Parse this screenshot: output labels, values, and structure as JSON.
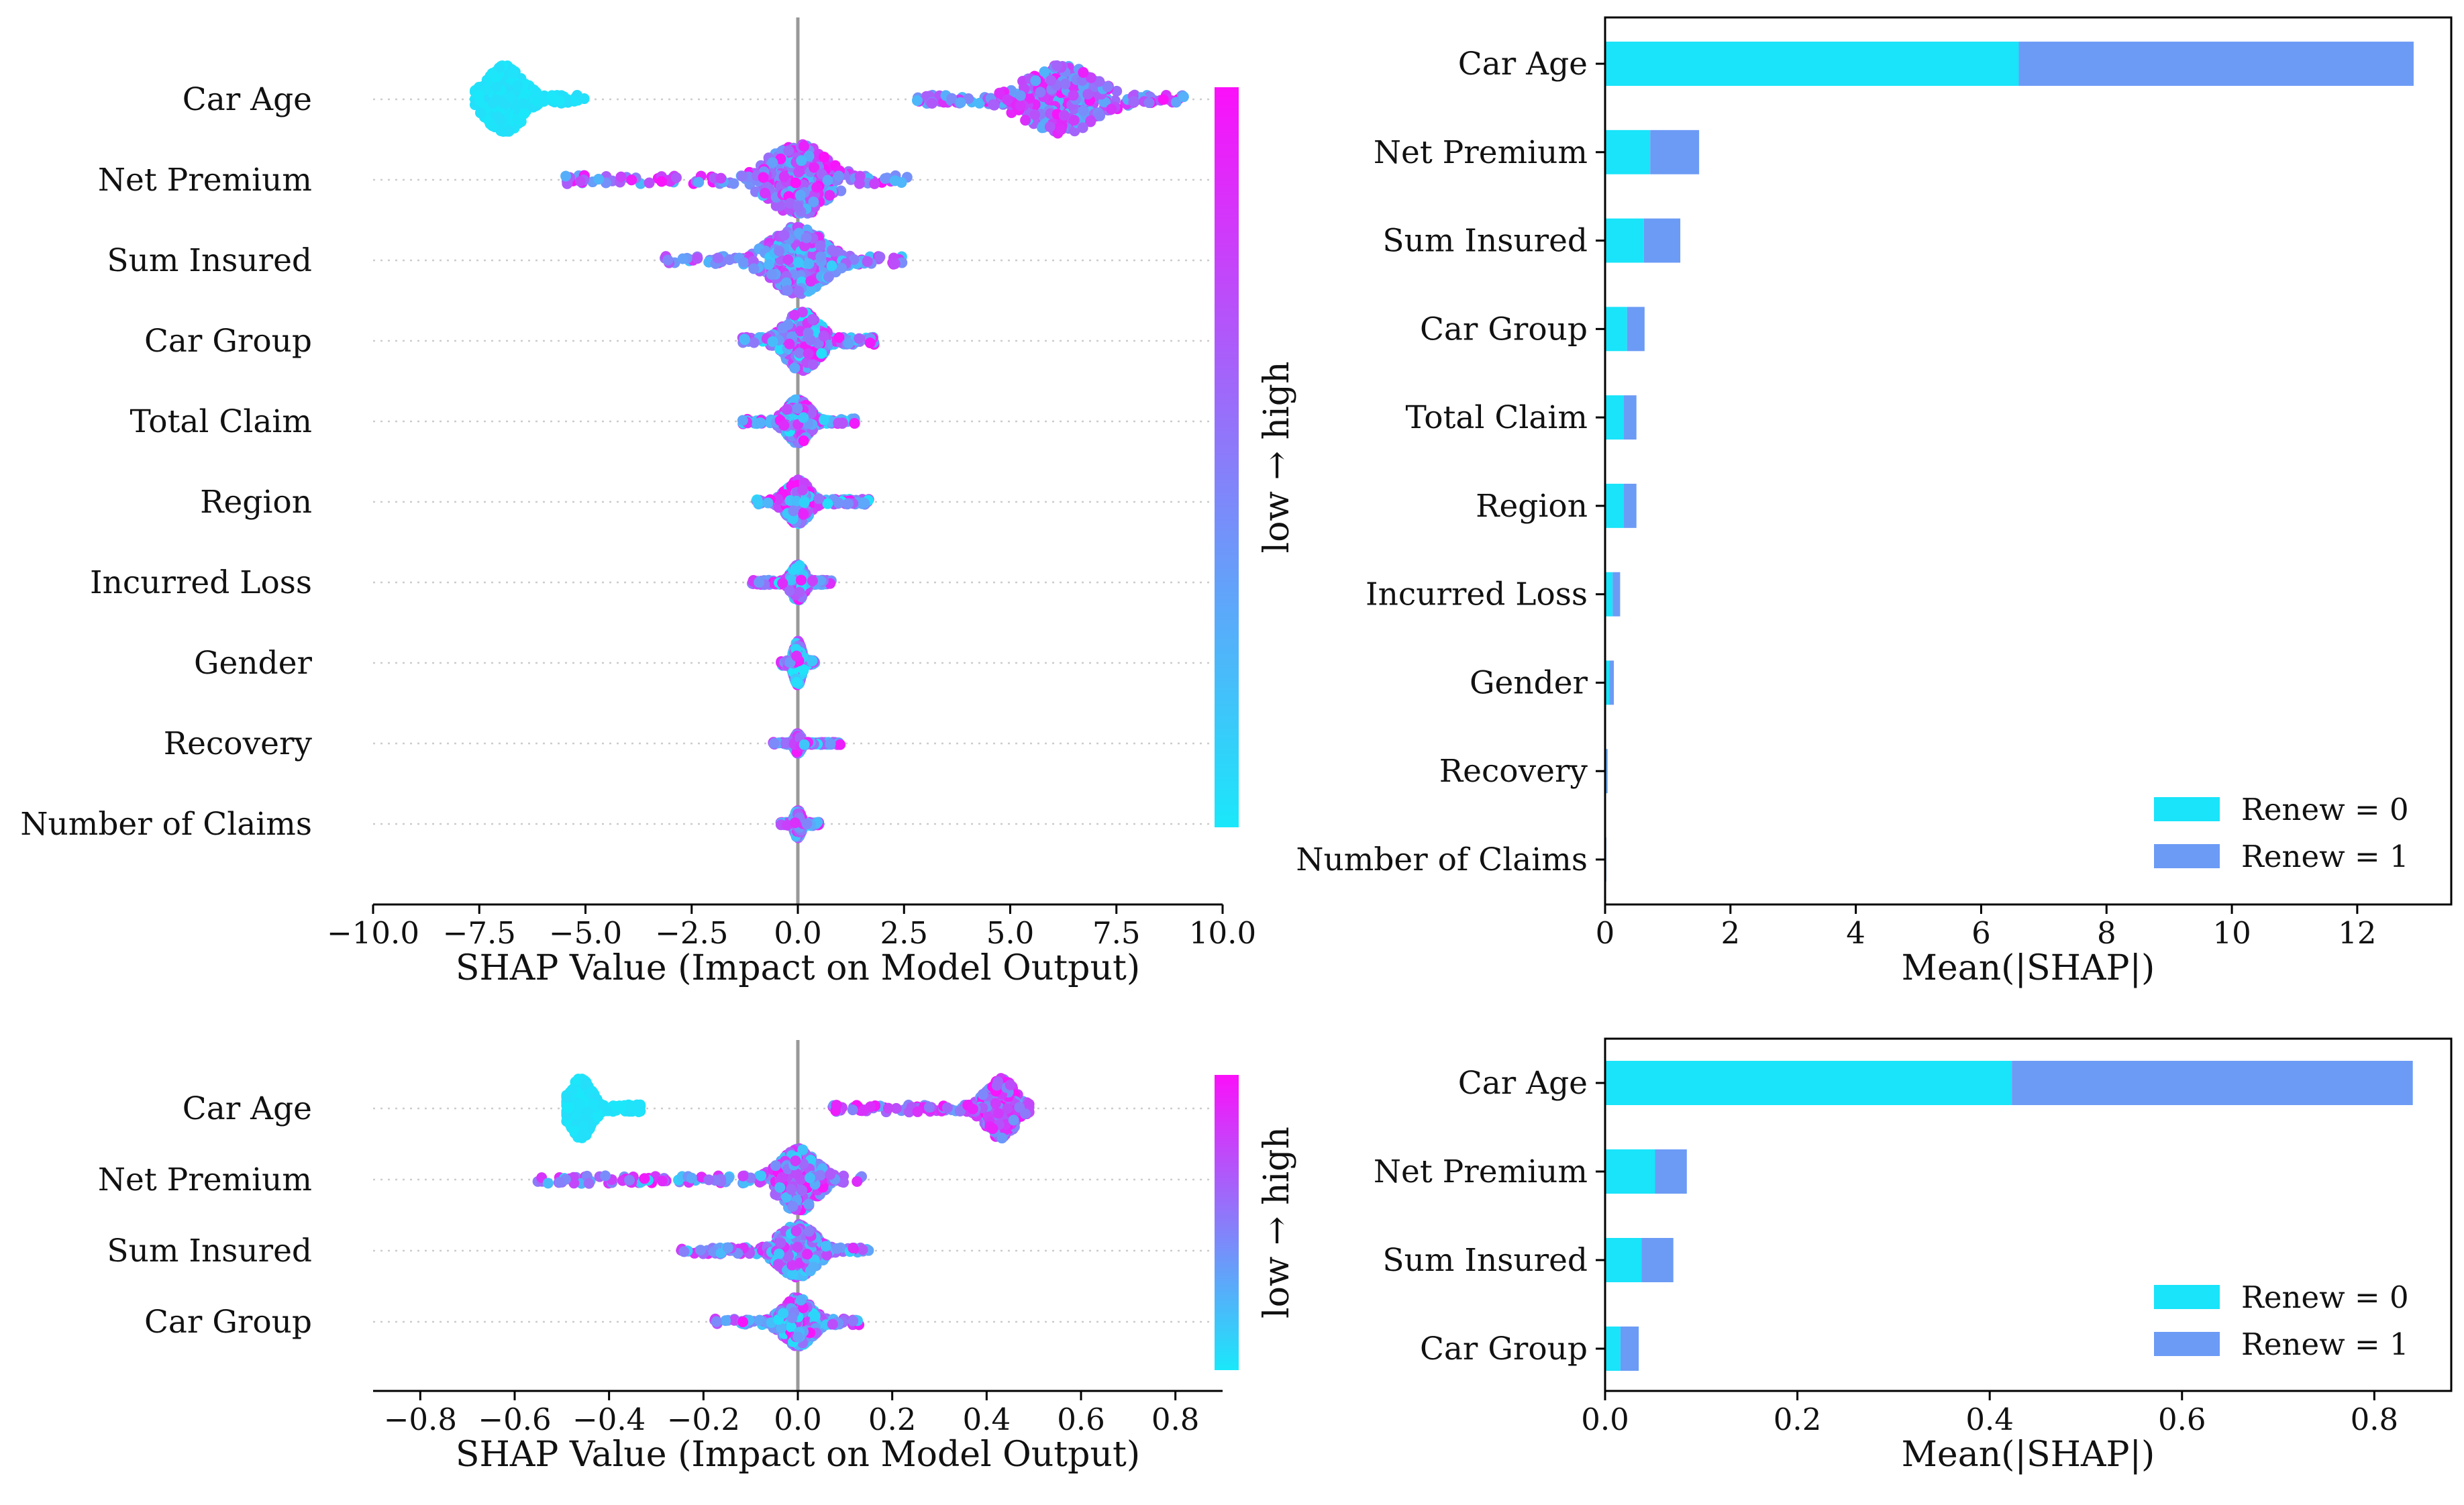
{
  "colors": {
    "low": "#1ae8fa",
    "high": "#fb10fa",
    "renew0": "#19e4f9",
    "renew1": "#6c9bf5",
    "zero_line": "#999999",
    "axis": "#000000"
  },
  "chart_data": [
    {
      "type": "scatter",
      "subtype": "shap-beeswarm",
      "panel": "top-left",
      "xlabel": "SHAP Value (Impact on Model Output)",
      "xlim": [
        -10,
        10
      ],
      "xticks": [
        -10,
        -7.5,
        -5,
        -2.5,
        0,
        2.5,
        5,
        7.5,
        10
      ],
      "xtick_labels": [
        "−10.0",
        "−7.5",
        "−5.0",
        "−2.5",
        "0.0",
        "2.5",
        "5.0",
        "7.5",
        "10.0"
      ],
      "colorbar_label": "low → high",
      "features": [
        {
          "name": "Car Age",
          "clusters": [
            {
              "center": -6.9,
              "spread": 0.55,
              "tail_low": -7.6,
              "tail_high": -5.0,
              "height": 0.85,
              "color_lo": 0.0,
              "color_hi": 0.05
            },
            {
              "center": 6.2,
              "spread": 1.1,
              "tail_low": 2.8,
              "tail_high": 9.1,
              "height": 0.85,
              "color_lo": 0.2,
              "color_hi": 1.0
            }
          ]
        },
        {
          "name": "Net Premium",
          "clusters": [
            {
              "center": 0.0,
              "spread": 0.9,
              "tail_low": -5.5,
              "tail_high": 2.6,
              "height": 0.9,
              "color_lo": 0.2,
              "color_hi": 1.0
            }
          ]
        },
        {
          "name": "Sum Insured",
          "clusters": [
            {
              "center": 0.0,
              "spread": 0.8,
              "tail_low": -3.2,
              "tail_high": 2.5,
              "height": 0.85,
              "color_lo": 0.1,
              "color_hi": 0.9
            }
          ]
        },
        {
          "name": "Car Group",
          "clusters": [
            {
              "center": 0.1,
              "spread": 0.5,
              "tail_low": -1.3,
              "tail_high": 1.8,
              "height": 0.75,
              "color_lo": 0.0,
              "color_hi": 1.0
            }
          ]
        },
        {
          "name": "Total Claim",
          "clusters": [
            {
              "center": 0.0,
              "spread": 0.35,
              "tail_low": -1.3,
              "tail_high": 1.4,
              "height": 0.55,
              "color_lo": 0.0,
              "color_hi": 1.0
            }
          ]
        },
        {
          "name": "Region",
          "clusters": [
            {
              "center": 0.0,
              "spread": 0.35,
              "tail_low": -1.0,
              "tail_high": 1.7,
              "height": 0.55,
              "color_lo": 0.0,
              "color_hi": 1.0
            }
          ]
        },
        {
          "name": "Incurred Loss",
          "clusters": [
            {
              "center": 0.0,
              "spread": 0.2,
              "tail_low": -1.1,
              "tail_high": 0.8,
              "height": 0.45,
              "color_lo": 0.0,
              "color_hi": 1.0
            }
          ]
        },
        {
          "name": "Gender",
          "clusters": [
            {
              "center": 0.0,
              "spread": 0.12,
              "tail_low": -0.4,
              "tail_high": 0.4,
              "height": 0.55,
              "color_lo": 0.0,
              "color_hi": 1.0
            }
          ]
        },
        {
          "name": "Recovery",
          "clusters": [
            {
              "center": 0.0,
              "spread": 0.1,
              "tail_low": -0.6,
              "tail_high": 1.0,
              "height": 0.25,
              "color_lo": 0.0,
              "color_hi": 1.0
            }
          ]
        },
        {
          "name": "Number of Claims",
          "clusters": [
            {
              "center": 0.0,
              "spread": 0.1,
              "tail_low": -0.4,
              "tail_high": 0.5,
              "height": 0.35,
              "color_lo": 0.0,
              "color_hi": 1.0
            }
          ]
        }
      ]
    },
    {
      "type": "bar",
      "orientation": "horizontal",
      "stacked": true,
      "panel": "top-right",
      "xlabel": "Mean(|SHAP|)",
      "xlim": [
        0,
        13.5
      ],
      "xticks": [
        0,
        2,
        4,
        6,
        8,
        10,
        12
      ],
      "xtick_labels": [
        "0",
        "2",
        "4",
        "6",
        "8",
        "10",
        "12"
      ],
      "categories": [
        "Car Age",
        "Net Premium",
        "Sum Insured",
        "Car Group",
        "Total Claim",
        "Region",
        "Incurred Loss",
        "Gender",
        "Recovery",
        "Number of Claims"
      ],
      "series": [
        {
          "name": "Renew = 0",
          "values": [
            6.6,
            0.72,
            0.62,
            0.35,
            0.3,
            0.3,
            0.12,
            0.07,
            0.02,
            0.01
          ]
        },
        {
          "name": "Renew = 1",
          "values": [
            6.3,
            0.78,
            0.58,
            0.28,
            0.2,
            0.2,
            0.12,
            0.07,
            0.02,
            0.01
          ]
        }
      ],
      "legend": "lower-right"
    },
    {
      "type": "scatter",
      "subtype": "shap-beeswarm",
      "panel": "bottom-left",
      "xlabel": "SHAP Value (Impact on Model Output)",
      "xlim": [
        -0.9,
        0.9
      ],
      "xticks": [
        -0.8,
        -0.6,
        -0.4,
        -0.2,
        0.0,
        0.2,
        0.4,
        0.6,
        0.8
      ],
      "xtick_labels": [
        "−0.8",
        "−0.6",
        "−0.4",
        "−0.2",
        "0.0",
        "0.2",
        "0.4",
        "0.6",
        "0.8"
      ],
      "colorbar_label": "low → high",
      "features": [
        {
          "name": "Car Age",
          "clusters": [
            {
              "center": -0.46,
              "spread": 0.03,
              "tail_low": -0.49,
              "tail_high": -0.33,
              "height": 0.85,
              "color_lo": 0.0,
              "color_hi": 0.05
            },
            {
              "center": 0.43,
              "spread": 0.04,
              "tail_low": 0.07,
              "tail_high": 0.49,
              "height": 0.85,
              "color_lo": 0.3,
              "color_hi": 1.0
            }
          ]
        },
        {
          "name": "Net Premium",
          "clusters": [
            {
              "center": 0.0,
              "spread": 0.05,
              "tail_low": -0.56,
              "tail_high": 0.14,
              "height": 0.9,
              "color_lo": 0.1,
              "color_hi": 1.0
            }
          ]
        },
        {
          "name": "Sum Insured",
          "clusters": [
            {
              "center": 0.0,
              "spread": 0.05,
              "tail_low": -0.25,
              "tail_high": 0.15,
              "height": 0.75,
              "color_lo": 0.1,
              "color_hi": 0.9
            }
          ]
        },
        {
          "name": "Car Group",
          "clusters": [
            {
              "center": 0.0,
              "spread": 0.04,
              "tail_low": -0.18,
              "tail_high": 0.13,
              "height": 0.7,
              "color_lo": 0.0,
              "color_hi": 1.0
            }
          ]
        }
      ]
    },
    {
      "type": "bar",
      "orientation": "horizontal",
      "stacked": true,
      "panel": "bottom-right",
      "xlabel": "Mean(|SHAP|)",
      "xlim": [
        0,
        0.88
      ],
      "xticks": [
        0.0,
        0.2,
        0.4,
        0.6,
        0.8
      ],
      "xtick_labels": [
        "0.0",
        "0.2",
        "0.4",
        "0.6",
        "0.8"
      ],
      "categories": [
        "Car Age",
        "Net Premium",
        "Sum Insured",
        "Car Group"
      ],
      "series": [
        {
          "name": "Renew = 0",
          "values": [
            0.423,
            0.052,
            0.038,
            0.016
          ]
        },
        {
          "name": "Renew = 1",
          "values": [
            0.417,
            0.033,
            0.033,
            0.019
          ]
        }
      ],
      "legend": "lower-right"
    }
  ]
}
